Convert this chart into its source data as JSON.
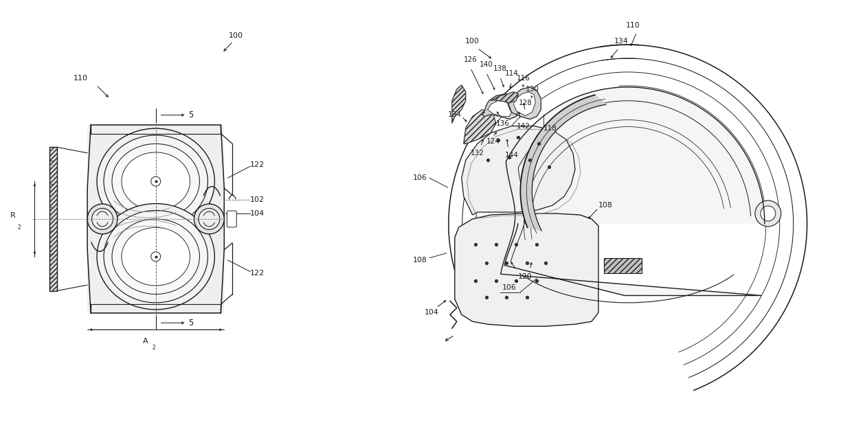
{
  "bg_color": "#ffffff",
  "lc": "#1a1a1a",
  "fig_width": 12.4,
  "fig_height": 6.41,
  "dpi": 100
}
